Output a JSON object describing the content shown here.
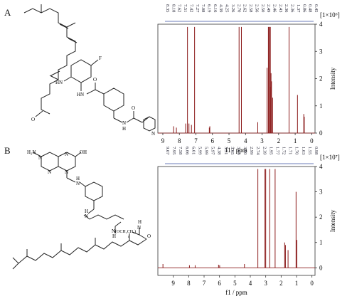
{
  "panels": [
    {
      "label": "A",
      "chart_data": {
        "type": "line",
        "title": "",
        "xlabel": "f1 / ppm",
        "ylabel": "Intensity",
        "scale_label": "[1×10⁶]",
        "xlim": [
          9.3,
          -0.2
        ],
        "ylim": [
          0,
          4
        ],
        "x_ticks": [
          9,
          8,
          7,
          6,
          5,
          4,
          3,
          2,
          1,
          0
        ],
        "y_ticks": [
          0,
          1,
          2,
          3,
          4
        ],
        "peak_labels": [
          "8.35",
          "8.18",
          "7.62",
          "7.51",
          "7.42",
          "7.27",
          "7.08",
          "6.19",
          "6.16",
          "4.39",
          "4.25",
          "3.26",
          "2.70",
          "2.62",
          "2.58",
          "2.56",
          "2.50",
          "2.49",
          "2.46",
          "2.43",
          "2.36",
          "2.36",
          "1.37",
          "0.86",
          "0.48",
          "0.45"
        ],
        "series": [
          {
            "values": [
              {
                "ppm": 8.35,
                "i": 0.25
              },
              {
                "ppm": 8.18,
                "i": 0.2
              },
              {
                "ppm": 7.62,
                "i": 0.35
              },
              {
                "ppm": 7.51,
                "i": 3.9
              },
              {
                "ppm": 7.42,
                "i": 0.35
              },
              {
                "ppm": 7.27,
                "i": 0.3
              },
              {
                "ppm": 7.08,
                "i": 3.9
              },
              {
                "ppm": 6.19,
                "i": 0.2
              },
              {
                "ppm": 6.16,
                "i": 0.25
              },
              {
                "ppm": 4.39,
                "i": 3.9
              },
              {
                "ppm": 4.25,
                "i": 3.9
              },
              {
                "ppm": 3.26,
                "i": 0.4
              },
              {
                "ppm": 2.7,
                "i": 2.4
              },
              {
                "ppm": 2.62,
                "i": 3.9
              },
              {
                "ppm": 2.58,
                "i": 3.9
              },
              {
                "ppm": 2.56,
                "i": 3.9
              },
              {
                "ppm": 2.5,
                "i": 3.9
              },
              {
                "ppm": 2.49,
                "i": 1.7
              },
              {
                "ppm": 2.46,
                "i": 2.2
              },
              {
                "ppm": 2.43,
                "i": 1.9
              },
              {
                "ppm": 2.36,
                "i": 1.3
              },
              {
                "ppm": 1.37,
                "i": 3.9
              },
              {
                "ppm": 0.86,
                "i": 1.4
              },
              {
                "ppm": 0.48,
                "i": 0.7
              },
              {
                "ppm": 0.45,
                "i": 0.6
              }
            ]
          }
        ]
      }
    },
    {
      "label": "B",
      "chart_data": {
        "type": "line",
        "title": "",
        "xlabel": "f1 / ppm",
        "ylabel": "Intensity",
        "scale_label": "[1×10⁷]",
        "xlim": [
          10.0,
          -0.2
        ],
        "ylim": [
          -0.3,
          4
        ],
        "x_ticks": [
          9,
          8,
          7,
          6,
          5,
          4,
          3,
          2,
          1,
          0
        ],
        "y_ticks": [
          0,
          1,
          2,
          3,
          4
        ],
        "peak_labels": [
          "9.67",
          "7.95",
          "7.58",
          "6.06",
          "6.01",
          "5.99",
          "5.99",
          "5.97",
          "4.38",
          "3.51",
          "3.05",
          "3.04",
          "3.00",
          "2.99",
          "2.74",
          "2.39",
          "1.95",
          "1.77",
          "1.72",
          "1.71",
          "1.70",
          "1.03",
          "1.55",
          "0.98"
        ],
        "series": [
          {
            "values": [
              {
                "ppm": 9.67,
                "i": 0.15
              },
              {
                "ppm": 7.95,
                "i": 0.1
              },
              {
                "ppm": 7.58,
                "i": 0.1
              },
              {
                "ppm": 6.06,
                "i": 0.12
              },
              {
                "ppm": 5.99,
                "i": 0.1
              },
              {
                "ppm": 4.38,
                "i": 0.15
              },
              {
                "ppm": 3.51,
                "i": 3.9
              },
              {
                "ppm": 3.05,
                "i": 3.9
              },
              {
                "ppm": 3.0,
                "i": 3.9
              },
              {
                "ppm": 2.74,
                "i": 3.9
              },
              {
                "ppm": 2.39,
                "i": 3.9
              },
              {
                "ppm": 1.77,
                "i": 1.0
              },
              {
                "ppm": 1.72,
                "i": 0.9
              },
              {
                "ppm": 1.55,
                "i": 0.7
              },
              {
                "ppm": 1.03,
                "i": 3.0
              },
              {
                "ppm": 0.98,
                "i": 1.1
              }
            ]
          }
        ]
      }
    }
  ],
  "structure_text": {
    "a_F": "F",
    "a_HN1": "HN",
    "a_HN2": "HN",
    "a_O1": "O",
    "a_O2": "O",
    "a_N1": "N",
    "a_H": "H",
    "a_O3": "O",
    "a_N2": "N",
    "b_H2N": "H₂N",
    "b_N1": "N",
    "b_N2": "N",
    "b_N3": "N",
    "b_N4": "N",
    "b_OH": "OH",
    "b_H1": "H",
    "b_N5": "N",
    "b_H2": "H",
    "b_N6": "N",
    "b_H3": "H",
    "b_N7": "N",
    "b_chain": "(OCH₂CH₂)",
    "b_n": "n",
    "b_H4": "H",
    "b_N8": "N",
    "b_O": "O"
  }
}
